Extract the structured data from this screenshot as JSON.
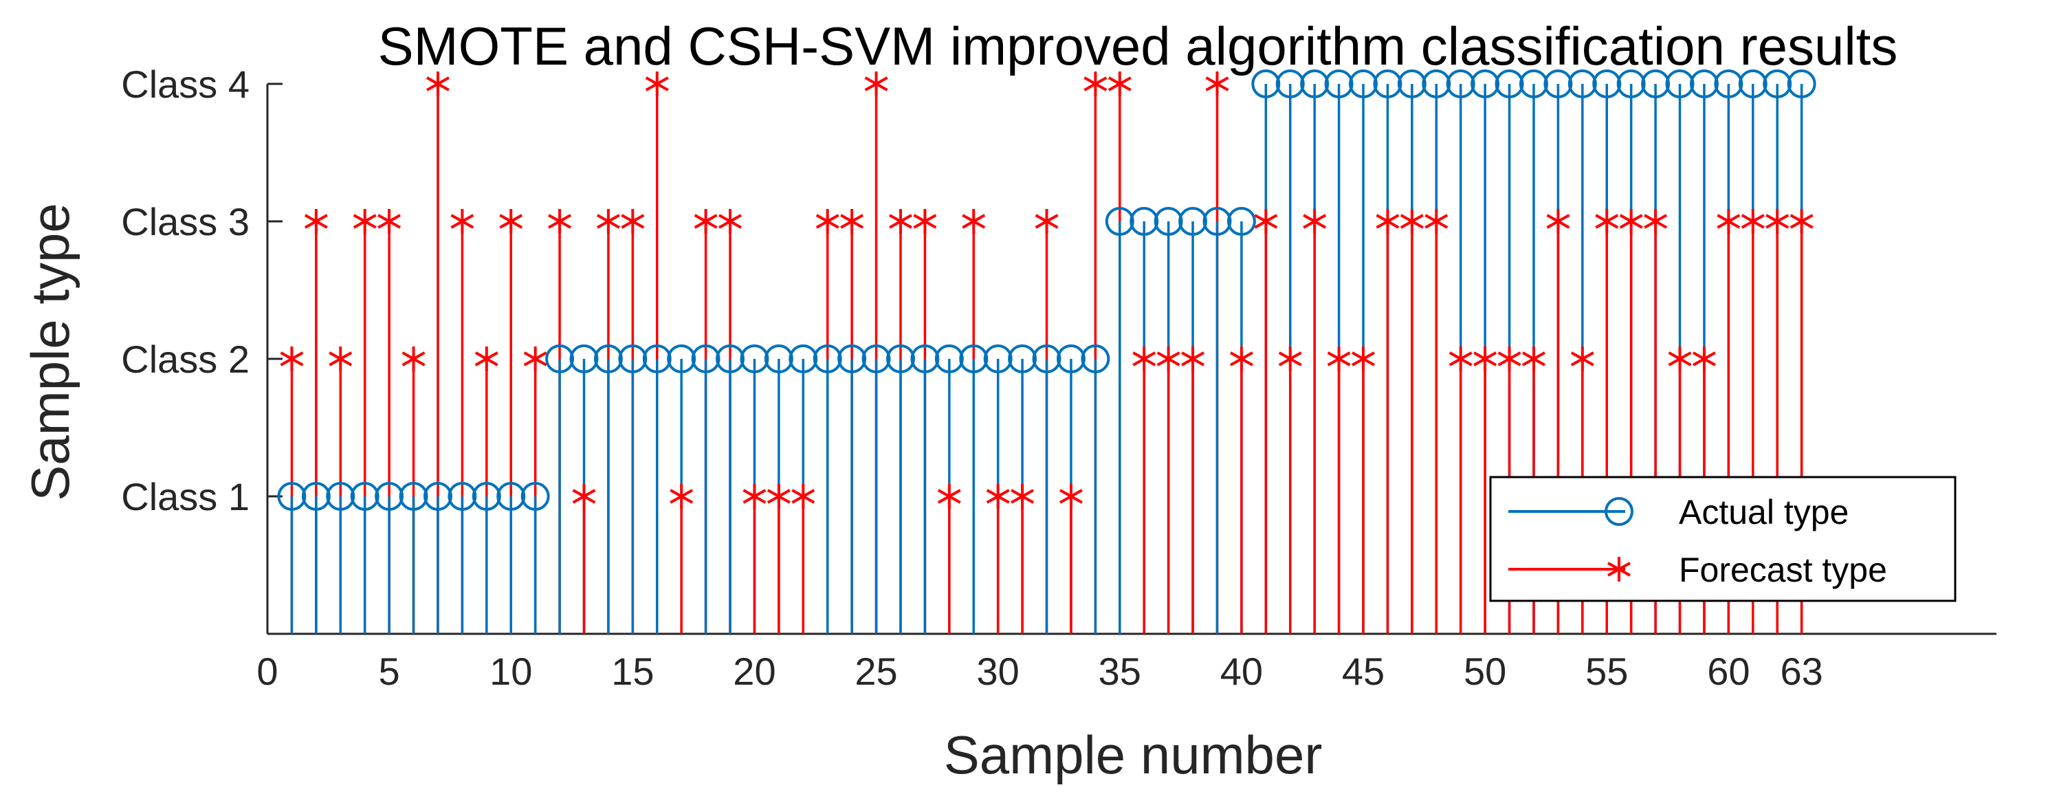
{
  "chart_data": {
    "type": "stem",
    "title": "SMOTE and CSH-SVM improved algorithm classification results",
    "xlabel": "Sample number",
    "ylabel": "Sample type",
    "xlim": [
      0,
      71
    ],
    "ylim": [
      0,
      4
    ],
    "xticks": [
      0,
      5,
      10,
      15,
      20,
      25,
      30,
      35,
      40,
      45,
      50,
      55,
      60,
      63
    ],
    "yticks": [
      {
        "value": 1,
        "label": "Class 1"
      },
      {
        "value": 2,
        "label": "Class 2"
      },
      {
        "value": 3,
        "label": "Class 3"
      },
      {
        "value": 4,
        "label": "Class 4"
      }
    ],
    "legend_position": "bottom-right",
    "x": [
      1,
      2,
      3,
      4,
      5,
      6,
      7,
      8,
      9,
      10,
      11,
      12,
      13,
      14,
      15,
      16,
      17,
      18,
      19,
      20,
      21,
      22,
      23,
      24,
      25,
      26,
      27,
      28,
      29,
      30,
      31,
      32,
      33,
      34,
      35,
      36,
      37,
      38,
      39,
      40,
      41,
      42,
      43,
      44,
      45,
      46,
      47,
      48,
      49,
      50,
      51,
      52,
      53,
      54,
      55,
      56,
      57,
      58,
      59,
      60,
      61,
      62,
      63
    ],
    "series": [
      {
        "name": "Actual type",
        "marker": "circle",
        "color": "#0072BD",
        "values": [
          1,
          1,
          1,
          1,
          1,
          1,
          1,
          1,
          1,
          1,
          1,
          2,
          2,
          2,
          2,
          2,
          2,
          2,
          2,
          2,
          2,
          2,
          2,
          2,
          2,
          2,
          2,
          2,
          2,
          2,
          2,
          2,
          2,
          2,
          3,
          3,
          3,
          3,
          3,
          3,
          4,
          4,
          4,
          4,
          4,
          4,
          4,
          4,
          4,
          4,
          4,
          4,
          4,
          4,
          4,
          4,
          4,
          4,
          4,
          4,
          4,
          4,
          4
        ]
      },
      {
        "name": "Forecast type",
        "marker": "asterisk",
        "color": "#FF0000",
        "values": [
          2,
          3,
          2,
          3,
          3,
          2,
          4,
          3,
          2,
          3,
          2,
          3,
          1,
          3,
          3,
          4,
          1,
          3,
          3,
          1,
          1,
          1,
          3,
          3,
          4,
          3,
          3,
          1,
          3,
          1,
          1,
          3,
          1,
          4,
          4,
          2,
          2,
          2,
          4,
          2,
          3,
          2,
          3,
          2,
          2,
          3,
          3,
          3,
          2,
          2,
          2,
          2,
          3,
          2,
          3,
          3,
          3,
          2,
          2,
          3,
          3,
          3,
          3
        ]
      }
    ]
  }
}
